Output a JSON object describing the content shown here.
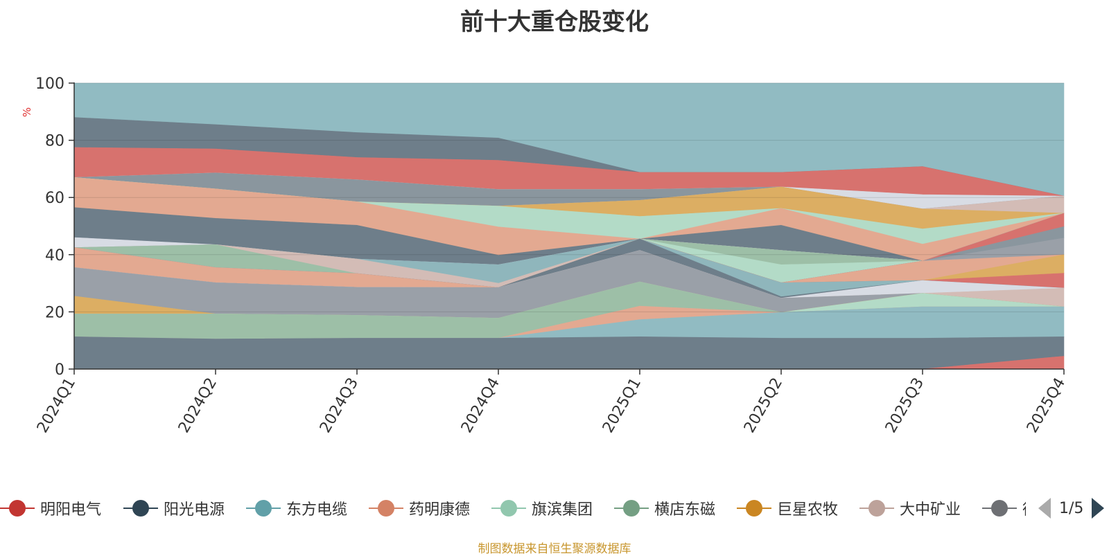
{
  "title": "前十大重仓股变化",
  "source_note": "制图数据来自恒生聚源数据库",
  "pager": {
    "text": "1/5"
  },
  "colors": {
    "accent_source": "#c8962e",
    "axis": "#333333",
    "unit_label": "#e03030"
  },
  "legend": {
    "items": [
      {
        "name": "明阳电气",
        "color": "#c23531"
      },
      {
        "name": "阳光电源",
        "color": "#2f4554"
      },
      {
        "name": "东方电缆",
        "color": "#61a0a8"
      },
      {
        "name": "药明康德",
        "color": "#d48265"
      },
      {
        "name": "旗滨集团",
        "color": "#91c7ae"
      },
      {
        "name": "横店东磁",
        "color": "#749f83"
      },
      {
        "name": "巨星农牧",
        "color": "#ca8622"
      },
      {
        "name": "大中矿业",
        "color": "#bda29a"
      },
      {
        "name": "德",
        "color": "#6e7074"
      }
    ]
  },
  "chart_data": {
    "type": "area",
    "title": "前十大重仓股变化",
    "ylabel": "%",
    "ylim": [
      0,
      100
    ],
    "yticks": [
      0,
      20,
      40,
      60,
      80,
      100
    ],
    "categories": [
      "2024Q1",
      "2024Q2",
      "2024Q3",
      "2024Q4",
      "2025Q1",
      "2025Q2",
      "2025Q3",
      "2025Q4"
    ],
    "layers": [
      {
        "color": "#91bbc2",
        "lower": [
          88,
          85.5,
          82.7,
          80.8,
          68.8,
          68.8,
          70.8,
          60.5
        ],
        "upper": [
          100,
          100,
          100,
          100,
          100,
          100,
          100,
          100
        ]
      },
      {
        "color": "#6e7e8a",
        "lower": [
          77.5,
          77,
          74,
          73,
          68.8,
          68.8,
          70.8,
          60.5
        ],
        "upper": [
          88,
          85.5,
          82.7,
          80.8,
          68.8,
          68.8,
          70.8,
          60.5
        ]
      },
      {
        "color": "#d7726e",
        "lower": [
          67,
          68.6,
          66.2,
          62.8,
          62.8,
          63.7,
          61,
          60.5
        ],
        "upper": [
          77.5,
          77,
          74,
          73,
          68.8,
          68.8,
          70.8,
          60.5
        ]
      },
      {
        "color": "#d8dce4",
        "lower": [
          67,
          68.6,
          66.2,
          62.8,
          62.8,
          63.7,
          56,
          60.5
        ],
        "upper": [
          67,
          68.6,
          66.2,
          62.8,
          62.8,
          63.7,
          61,
          60.5
        ]
      },
      {
        "color": "#8a969e",
        "lower": [
          67,
          63,
          58.5,
          57,
          59,
          63.7,
          56,
          60.5
        ],
        "upper": [
          67,
          68.6,
          66.2,
          62.8,
          62.8,
          63.7,
          56,
          60.5
        ]
      },
      {
        "color": "#d3bcb6",
        "lower": [
          67,
          63,
          58.5,
          57,
          59,
          63.7,
          56,
          54.5
        ],
        "upper": [
          67,
          63,
          58.5,
          57,
          59,
          63.7,
          56,
          60.5
        ]
      },
      {
        "color": "#dcae63",
        "lower": [
          67,
          63,
          58.5,
          57,
          53.4,
          56.2,
          49,
          54.5
        ],
        "upper": [
          67,
          63,
          58.5,
          57,
          59,
          63.7,
          56,
          54.5
        ]
      },
      {
        "color": "#b3dbc7",
        "lower": [
          67,
          63,
          58.5,
          49.7,
          45.5,
          56.2,
          43.7,
          54.5
        ],
        "upper": [
          67,
          63,
          58.5,
          57,
          53.4,
          56.2,
          49,
          54.5
        ]
      },
      {
        "color": "#e3a991",
        "lower": [
          56.5,
          52.7,
          50.3,
          39.8,
          45.5,
          50.3,
          37.8,
          54.5
        ],
        "upper": [
          67,
          63,
          58.5,
          49.7,
          45.5,
          56.2,
          43.7,
          54.5
        ]
      },
      {
        "color": "#6e7e8a",
        "lower": [
          46,
          43.5,
          38.5,
          36.5,
          45.5,
          41.5,
          37.8,
          54.5
        ],
        "upper": [
          56.5,
          52.7,
          50.3,
          39.8,
          45.5,
          50.3,
          37.8,
          54.5
        ]
      },
      {
        "color": "#d8dce4",
        "lower": [
          42.5,
          43.5,
          38.5,
          36.5,
          45.5,
          41.5,
          37.8,
          54.5
        ],
        "upper": [
          46,
          43.5,
          38.5,
          36.5,
          45.5,
          41.5,
          37.8,
          54.5
        ]
      },
      {
        "color": "#8fb6bc",
        "lower": [
          42.5,
          43.5,
          38.5,
          30,
          45.5,
          41.5,
          37.8,
          54.5
        ],
        "upper": [
          42.5,
          43.5,
          38.5,
          36.5,
          45.5,
          41.5,
          37.8,
          54.5
        ]
      },
      {
        "color": "#d3bcb6",
        "lower": [
          42.5,
          43.5,
          33.4,
          28.5,
          45.5,
          41.5,
          37.8,
          54.5
        ],
        "upper": [
          42.5,
          43.5,
          38.5,
          30,
          45.5,
          41.5,
          37.8,
          54.5
        ]
      },
      {
        "color": "#9dbfa7",
        "lower": [
          42.5,
          35.5,
          33.4,
          28.5,
          45.5,
          36.5,
          37.8,
          54.5
        ],
        "upper": [
          42.5,
          43.5,
          33.4,
          28.5,
          45.5,
          41.5,
          37.8,
          54.5
        ]
      },
      {
        "color": "#b3dbc7",
        "lower": [
          42.5,
          35.5,
          33.4,
          28.5,
          45.5,
          30.2,
          37.8,
          54.5
        ],
        "upper": [
          42.5,
          35.5,
          33.4,
          28.5,
          45.5,
          36.5,
          37.8,
          54.5
        ]
      },
      {
        "color": "#d7726e",
        "lower": [
          42.5,
          35.5,
          33.4,
          28.5,
          45.5,
          30.2,
          37.8,
          49.8
        ],
        "upper": [
          42.5,
          35.5,
          33.4,
          28.5,
          45.5,
          30.2,
          37.8,
          54.5
        ]
      },
      {
        "color": "#8a969e",
        "lower": [
          42.5,
          35.5,
          33.4,
          28.5,
          45.5,
          30.2,
          37.8,
          45.8
        ],
        "upper": [
          42.5,
          35.5,
          33.4,
          28.5,
          45.5,
          30.2,
          37.8,
          49.8
        ]
      },
      {
        "color": "#9aa0a8",
        "lower": [
          42.5,
          35.5,
          33.4,
          28.5,
          45.5,
          30.2,
          37.8,
          40
        ],
        "upper": [
          42.5,
          35.5,
          33.4,
          28.5,
          45.5,
          30.2,
          37.8,
          45.8
        ]
      },
      {
        "color": "#e3a991",
        "lower": [
          35.5,
          30.2,
          28.6,
          28.5,
          45.5,
          30.2,
          31,
          40
        ],
        "upper": [
          42.5,
          35.5,
          33.4,
          28.5,
          45.5,
          30.2,
          37.8,
          40
        ]
      },
      {
        "color": "#dcae63",
        "lower": [
          35.5,
          30.2,
          28.6,
          28.5,
          45.5,
          30.2,
          31,
          33.5
        ],
        "upper": [
          35.5,
          30.2,
          28.6,
          28.5,
          45.5,
          30.2,
          31,
          40
        ]
      },
      {
        "color": "#d7726e",
        "lower": [
          35.5,
          30.2,
          28.6,
          28.5,
          45.5,
          30.2,
          31,
          28.3
        ],
        "upper": [
          35.5,
          30.2,
          28.6,
          28.5,
          45.5,
          30.2,
          31,
          33.5
        ]
      },
      {
        "color": "#8fb6bc",
        "lower": [
          35.5,
          30.2,
          28.6,
          28.5,
          45.5,
          25.3,
          31,
          28.3
        ],
        "upper": [
          35.5,
          30.2,
          28.6,
          28.5,
          45.5,
          30.2,
          31,
          28.3
        ]
      },
      {
        "color": "#6e7e8a",
        "lower": [
          35.5,
          30.2,
          28.6,
          28.5,
          41.5,
          24.8,
          31,
          28.3
        ],
        "upper": [
          35.5,
          30.2,
          28.6,
          28.5,
          45.5,
          25.3,
          31,
          28.3
        ]
      },
      {
        "color": "#d8dce4",
        "lower": [
          35.5,
          30.2,
          28.6,
          28.5,
          41.5,
          24.8,
          26.5,
          28.3
        ],
        "upper": [
          35.5,
          30.2,
          28.6,
          28.5,
          41.5,
          24.8,
          31,
          28.3
        ]
      },
      {
        "color": "#d3bcb6",
        "lower": [
          35.5,
          30.2,
          28.6,
          28.5,
          41.5,
          24.8,
          26.5,
          21.8
        ],
        "upper": [
          35.5,
          30.2,
          28.6,
          28.5,
          41.5,
          24.8,
          26.5,
          28.3
        ]
      },
      {
        "color": "#9aa0a8",
        "lower": [
          25.5,
          19.3,
          18.8,
          17.8,
          30.5,
          19.8,
          26.5,
          21.8
        ],
        "upper": [
          35.5,
          30.2,
          28.6,
          28.5,
          41.5,
          24.8,
          26.5,
          21.8
        ]
      },
      {
        "color": "#dcae63",
        "lower": [
          19.3,
          19.3,
          18.8,
          17.8,
          30.5,
          19.8,
          26.5,
          21.8
        ],
        "upper": [
          25.5,
          19.3,
          18.8,
          17.8,
          30.5,
          19.8,
          26.5,
          21.8
        ]
      },
      {
        "color": "#b3dbc7",
        "lower": [
          19.3,
          19.3,
          18.8,
          17.8,
          30.5,
          19.8,
          21.8,
          21.8
        ],
        "upper": [
          19.3,
          19.3,
          18.8,
          17.8,
          30.5,
          19.8,
          26.5,
          21.8
        ]
      },
      {
        "color": "#9dbfa7",
        "lower": [
          11.3,
          10.5,
          10.8,
          10.8,
          22,
          19.8,
          21.8,
          21.8
        ],
        "upper": [
          19.3,
          19.3,
          18.8,
          17.8,
          30.5,
          19.8,
          21.8,
          21.8
        ]
      },
      {
        "color": "#e3a991",
        "lower": [
          11.3,
          10.5,
          10.8,
          10.8,
          17.3,
          19.8,
          21.8,
          21.8
        ],
        "upper": [
          11.3,
          10.5,
          10.8,
          10.8,
          22,
          19.8,
          21.8,
          21.8
        ]
      },
      {
        "color": "#91bbc2",
        "lower": [
          11.3,
          10.5,
          10.8,
          10.8,
          11.3,
          10.8,
          10.8,
          11.3
        ],
        "upper": [
          11.3,
          10.5,
          10.8,
          10.8,
          17.3,
          19.8,
          21.8,
          21.8
        ]
      },
      {
        "color": "#6e7e8a",
        "lower": [
          0,
          0,
          0,
          0,
          0,
          0,
          0,
          4.5
        ],
        "upper": [
          11.3,
          10.5,
          10.8,
          10.8,
          11.3,
          10.8,
          10.8,
          11.3
        ]
      },
      {
        "color": "#d7726e",
        "lower": [
          0,
          0,
          0,
          0,
          0,
          0,
          0,
          0
        ],
        "upper": [
          0,
          0,
          0,
          0,
          0,
          0,
          0,
          4.5
        ]
      }
    ]
  }
}
